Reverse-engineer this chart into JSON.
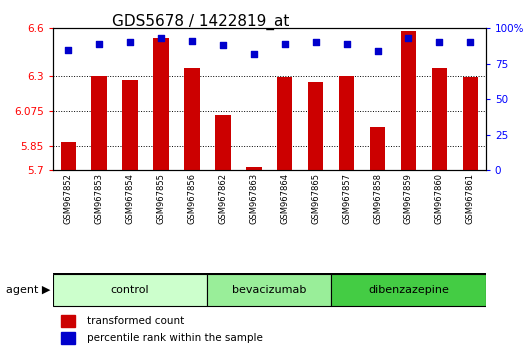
{
  "title": "GDS5678 / 1422819_at",
  "samples": [
    "GSM967852",
    "GSM967853",
    "GSM967854",
    "GSM967855",
    "GSM967856",
    "GSM967862",
    "GSM967863",
    "GSM967864",
    "GSM967865",
    "GSM967857",
    "GSM967858",
    "GSM967859",
    "GSM967860",
    "GSM967861"
  ],
  "bar_values": [
    5.88,
    6.3,
    6.27,
    6.54,
    6.35,
    6.05,
    5.72,
    6.29,
    6.26,
    6.3,
    5.97,
    6.58,
    6.35,
    6.29
  ],
  "percentile_values": [
    85,
    89,
    90,
    93,
    91,
    88,
    82,
    89,
    90,
    89,
    84,
    93,
    90,
    90
  ],
  "ylim_left": [
    5.7,
    6.6
  ],
  "ylim_right": [
    0,
    100
  ],
  "yticks_left": [
    5.7,
    5.85,
    6.075,
    6.3,
    6.6
  ],
  "yticks_right": [
    0,
    25,
    50,
    75,
    100
  ],
  "ytick_labels_left": [
    "5.7",
    "5.85",
    "6.075",
    "6.3",
    "6.6"
  ],
  "ytick_labels_right": [
    "0",
    "25",
    "50",
    "75",
    "100%"
  ],
  "bar_color": "#cc0000",
  "dot_color": "#0000cc",
  "background_color": "#ffffff",
  "agent_label": "agent",
  "groups": [
    {
      "label": "control",
      "start": 0,
      "end": 5,
      "color": "#ccffcc"
    },
    {
      "label": "bevacizumab",
      "start": 5,
      "end": 9,
      "color": "#99ee99"
    },
    {
      "label": "dibenzazepine",
      "start": 9,
      "end": 14,
      "color": "#44cc44"
    }
  ],
  "legend_bar_label": "transformed count",
  "legend_dot_label": "percentile rank within the sample",
  "title_fontsize": 11,
  "tick_fontsize": 7.5,
  "bar_width": 0.5
}
